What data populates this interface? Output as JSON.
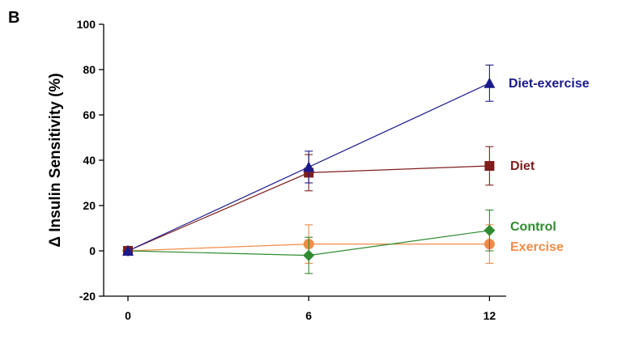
{
  "panel_label": "B",
  "chart_data": {
    "type": "line",
    "x": [
      0,
      6,
      12
    ],
    "xticks": [
      "0",
      "6",
      "12"
    ],
    "xlabel": "",
    "ylabel": "Δ Insulin Sensitivity (%)",
    "ylim": [
      -20,
      100
    ],
    "yticks": [
      "-20",
      "0",
      "20",
      "40",
      "60",
      "80",
      "100"
    ],
    "grid": false,
    "legend": "inline labels at right end of lines",
    "series": [
      {
        "name": "Diet-exercise",
        "color": "#1a1a8c",
        "marker": "triangle",
        "values": [
          0,
          37,
          74
        ],
        "errors": [
          0,
          7,
          8
        ]
      },
      {
        "name": "Diet",
        "color": "#7f1d1d",
        "marker": "square",
        "values": [
          0,
          34.5,
          37.5
        ],
        "errors": [
          0,
          8,
          8.5
        ]
      },
      {
        "name": "Control",
        "color": "#2e8b2e",
        "marker": "diamond",
        "values": [
          0,
          -2,
          9
        ],
        "errors": [
          0,
          8,
          9
        ]
      },
      {
        "name": "Exercise",
        "color": "#f28c48",
        "marker": "circle",
        "values": [
          0,
          3,
          3
        ],
        "errors": [
          0,
          8.5,
          8.5
        ]
      }
    ]
  }
}
